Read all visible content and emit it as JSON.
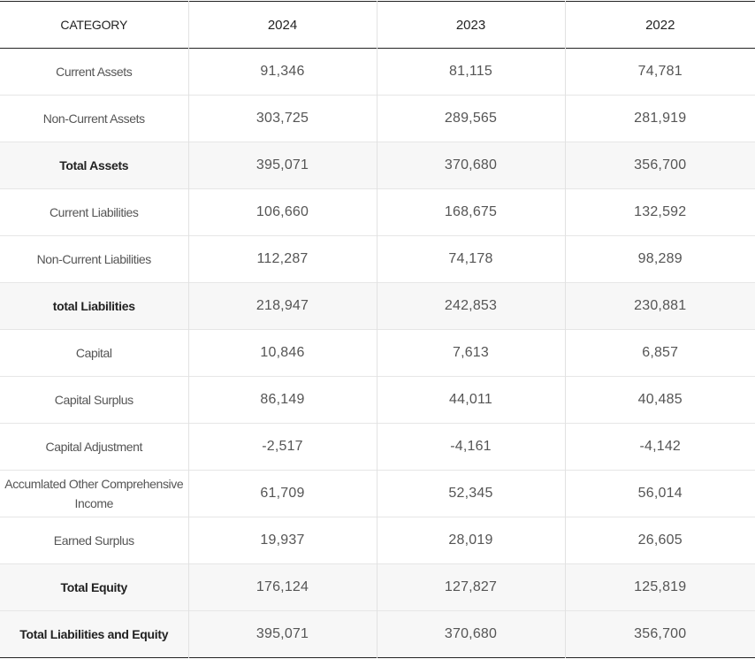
{
  "table": {
    "headers": [
      "CATEGORY",
      "2024",
      "2023",
      "2022"
    ],
    "rows": [
      {
        "label": "Current Assets",
        "values": [
          "91,346",
          "81,115",
          "74,781"
        ],
        "total": false
      },
      {
        "label": "Non-Current Assets",
        "values": [
          "303,725",
          "289,565",
          "281,919"
        ],
        "total": false
      },
      {
        "label": "Total Assets",
        "values": [
          "395,071",
          "370,680",
          "356,700"
        ],
        "total": true
      },
      {
        "label": "Current Liabilities",
        "values": [
          "106,660",
          "168,675",
          "132,592"
        ],
        "total": false
      },
      {
        "label": "Non-Current Liabilities",
        "values": [
          "112,287",
          "74,178",
          "98,289"
        ],
        "total": false
      },
      {
        "label": "total Liabilities",
        "values": [
          "218,947",
          "242,853",
          "230,881"
        ],
        "total": true
      },
      {
        "label": "Capital",
        "values": [
          "10,846",
          "7,613",
          "6,857"
        ],
        "total": false
      },
      {
        "label": "Capital Surplus",
        "values": [
          "86,149",
          "44,011",
          "40,485"
        ],
        "total": false
      },
      {
        "label": "Capital Adjustment",
        "values": [
          "-2,517",
          "-4,161",
          "-4,142"
        ],
        "total": false
      },
      {
        "label": "Accumlated Other Comprehensive Income",
        "values": [
          "61,709",
          "52,345",
          "56,014"
        ],
        "total": false
      },
      {
        "label": "Earned Surplus",
        "values": [
          "19,937",
          "28,019",
          "26,605"
        ],
        "total": false
      },
      {
        "label": "Total Equity",
        "values": [
          "176,124",
          "127,827",
          "125,819"
        ],
        "total": true
      },
      {
        "label": "Total Liabilities and Equity",
        "values": [
          "395,071",
          "370,680",
          "356,700"
        ],
        "total": true
      }
    ]
  }
}
